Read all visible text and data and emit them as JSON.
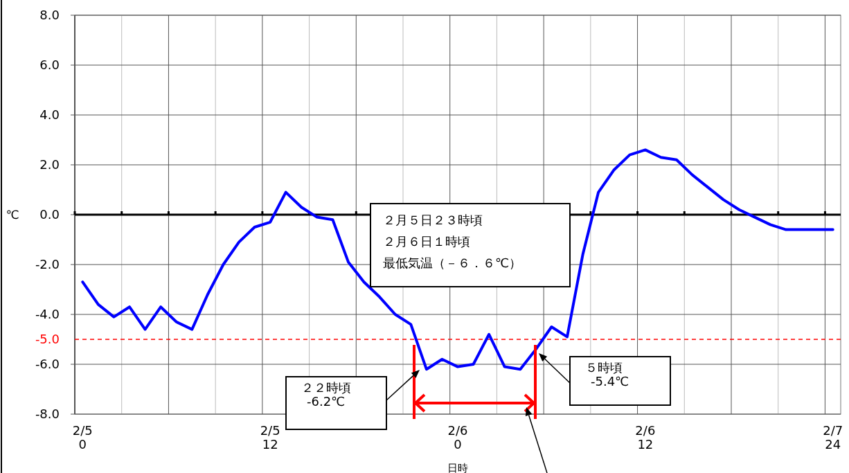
{
  "chart_data": {
    "type": "line",
    "xlabel": "日時",
    "ylabel": "℃",
    "categories": [
      "2/5\n0",
      null,
      null,
      null,
      null,
      null,
      null,
      null,
      null,
      null,
      null,
      null,
      "2/5\n12",
      null,
      null,
      null,
      null,
      null,
      null,
      null,
      null,
      null,
      null,
      null,
      "2/6\n0",
      null,
      null,
      null,
      null,
      null,
      null,
      null,
      null,
      null,
      null,
      null,
      "2/6\n12",
      null,
      null,
      null,
      null,
      null,
      null,
      null,
      null,
      null,
      null,
      null,
      "2/7\n24"
    ],
    "series": [
      {
        "color": "#0000ff",
        "values": [
          -2.7,
          -3.6,
          -4.1,
          -3.7,
          -4.6,
          -3.7,
          -4.3,
          -4.6,
          -3.2,
          -2.0,
          -1.1,
          -0.5,
          -0.3,
          0.9,
          0.3,
          -0.1,
          -0.2,
          -1.9,
          -2.7,
          -3.3,
          -4.0,
          -4.4,
          -6.2,
          -5.8,
          -6.1,
          -6.0,
          -4.8,
          -6.1,
          -6.2,
          -5.4,
          -4.5,
          -4.9,
          -1.6,
          0.9,
          1.8,
          2.4,
          2.6,
          2.3,
          2.2,
          1.6,
          1.1,
          0.6,
          0.2,
          -0.1,
          -0.4,
          -0.6,
          -0.6,
          -0.6,
          -0.6
        ]
      }
    ],
    "ylim": [
      -8,
      8
    ],
    "yticks": [
      {
        "value": -8,
        "label": "-8.0"
      },
      {
        "value": -6,
        "label": "-6.0"
      },
      {
        "value": -4,
        "label": "-4.0"
      },
      {
        "value": -2,
        "label": "-2.0"
      },
      {
        "value": 0,
        "label": "0.0"
      },
      {
        "value": 2,
        "label": "2.0"
      },
      {
        "value": 4,
        "label": "4.0"
      },
      {
        "value": 6,
        "label": "6.0"
      },
      {
        "value": 8,
        "label": "8.0"
      }
    ],
    "grid": true,
    "line_style": "solid",
    "marker": "none",
    "ref_lines": [
      {
        "axis": "y",
        "value": -5,
        "label": "-5.0",
        "color": "#ff0000",
        "line_style": "dashed"
      }
    ],
    "annotations": [
      "２月５日２３時頃",
      "２月６日１時頃",
      "最低気温（－６．６℃）",
      "２２時頃\n-6.2℃",
      "５時頃\n-5.4℃"
    ]
  }
}
